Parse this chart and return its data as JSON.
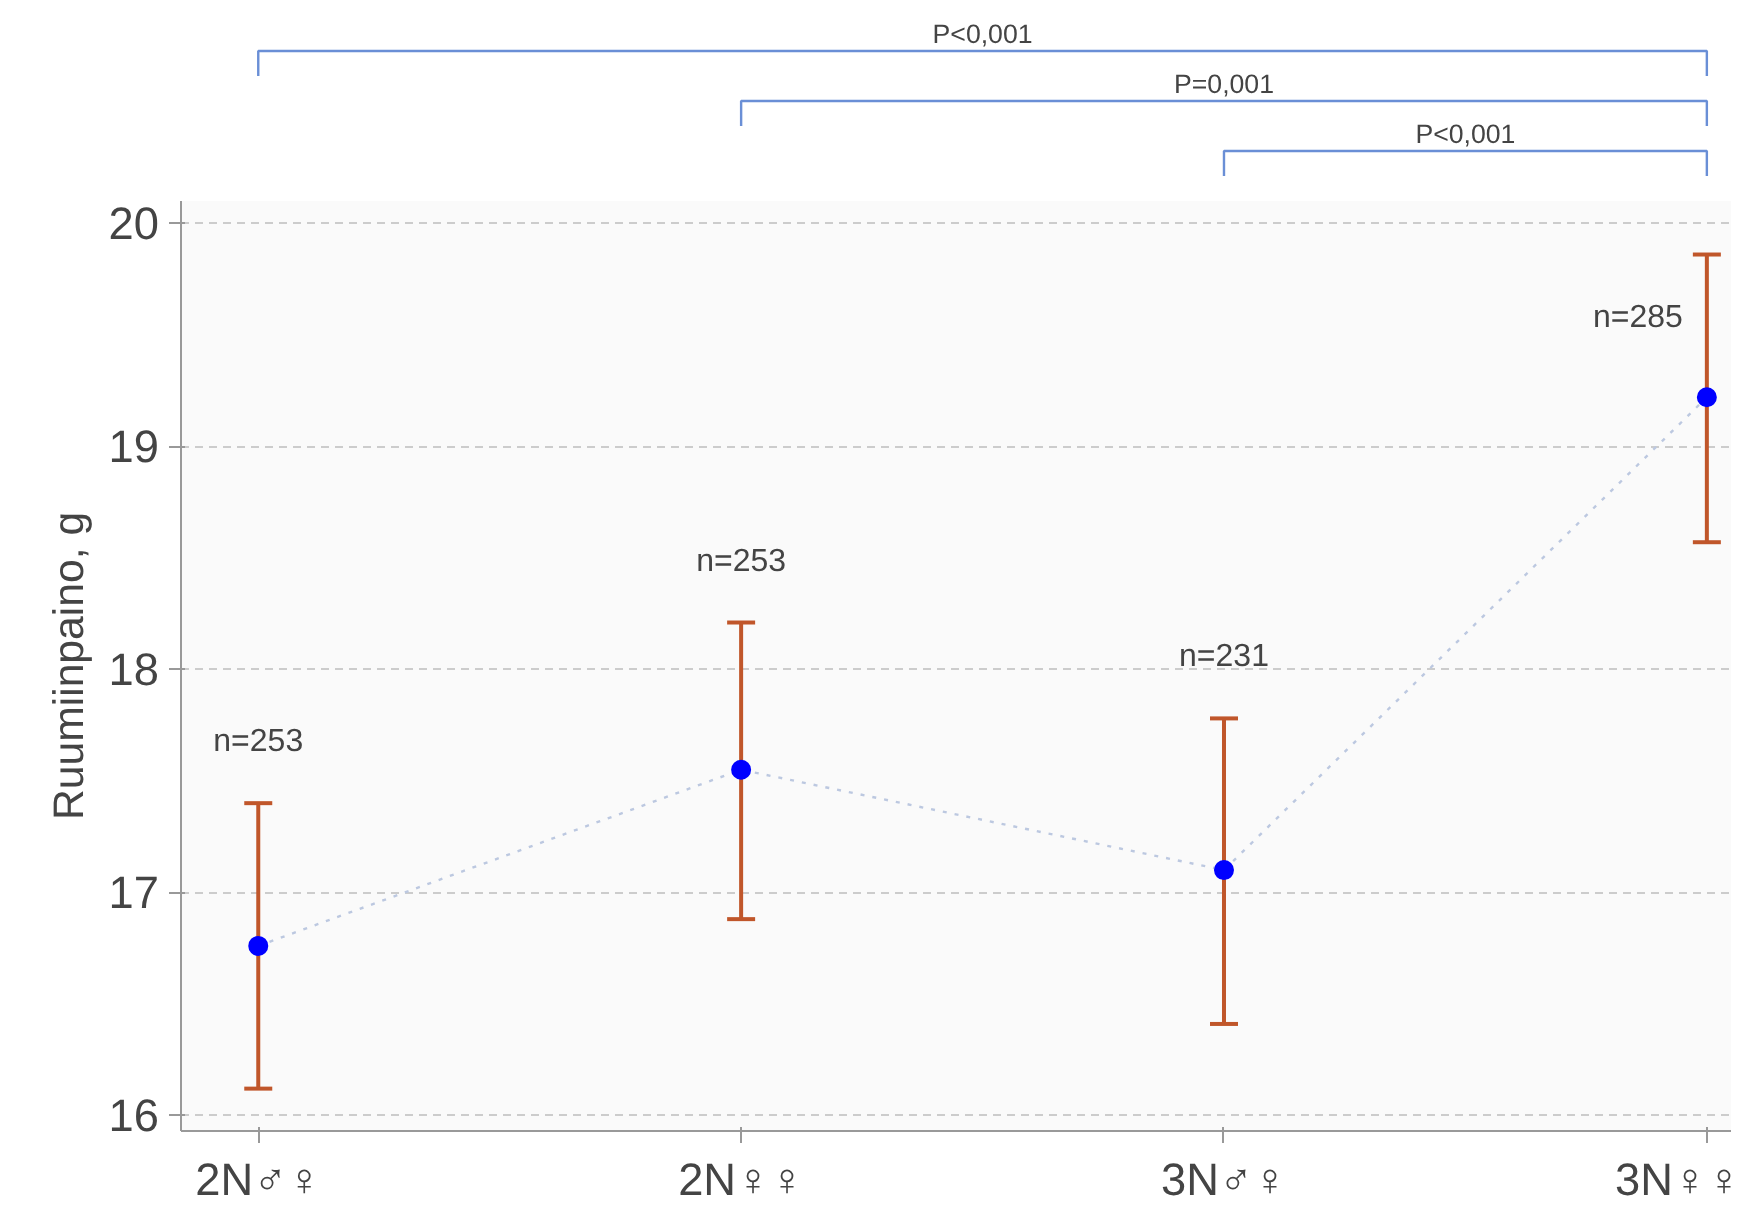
{
  "chart_data": {
    "type": "line",
    "ylabel": "Ruumiinpaino, g",
    "categories": [
      "2N♂♀",
      "2N♀♀",
      "3N♂♀",
      "3N♀♀"
    ],
    "series": [
      {
        "color": "#0000ff",
        "values": [
          16.76,
          17.55,
          17.1,
          19.22
        ],
        "errors": [
          [
            16.12,
            17.4
          ],
          [
            16.88,
            18.21
          ],
          [
            16.41,
            17.78
          ],
          [
            18.57,
            19.86
          ]
        ]
      }
    ],
    "ylim": [
      15.93,
      20.1
    ],
    "yticks": [
      16,
      17,
      18,
      19,
      20
    ],
    "grid": "y",
    "marker": "circle",
    "line_style": "dotted",
    "annotations": [
      "n=253",
      "n=253",
      "n=231",
      "n=285",
      "P<0,001",
      "P=0,001",
      "P<0,001"
    ]
  }
}
